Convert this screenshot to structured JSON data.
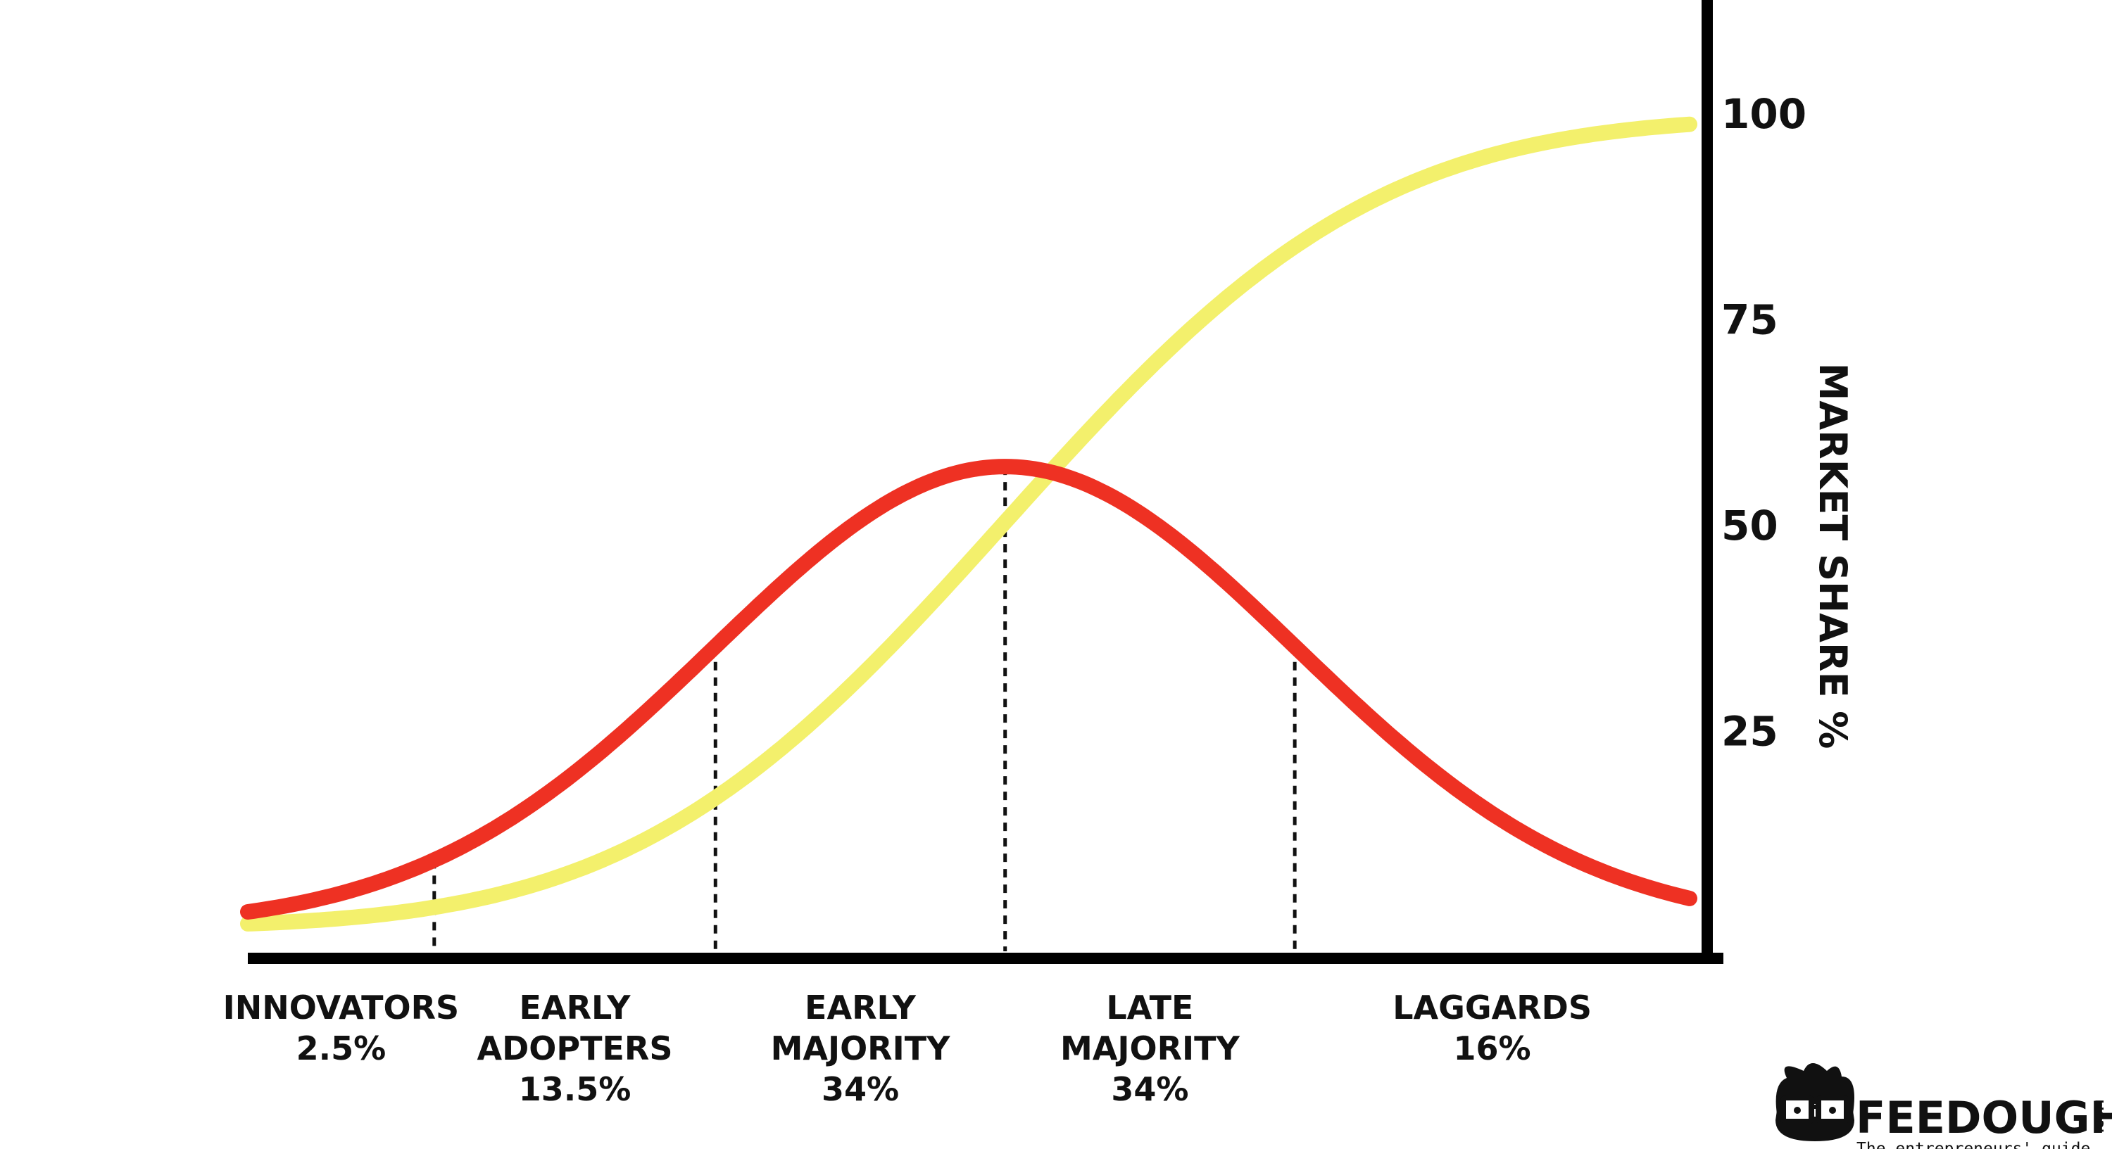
{
  "chart_data": {
    "type": "line",
    "title": "",
    "xlabel": "",
    "ylabel": "MARKET SHARE %",
    "ylim": [
      0,
      100
    ],
    "yticks": [
      "25",
      "50",
      "75",
      "100"
    ],
    "grid": false,
    "segments": [
      {
        "lines": [
          "INNOVATORS",
          "2.5%"
        ],
        "share": 2.5
      },
      {
        "lines": [
          "EARLY",
          "ADOPTERS",
          "13.5%"
        ],
        "share": 13.5
      },
      {
        "lines": [
          "EARLY",
          "MAJORITY",
          "34%"
        ],
        "share": 34
      },
      {
        "lines": [
          "LATE",
          "MAJORITY",
          "34%"
        ],
        "share": 34
      },
      {
        "lines": [
          "LAGGARDS",
          "16%"
        ],
        "share": 16
      }
    ],
    "series": [
      {
        "color": "#ee3123"
      },
      {
        "color": "#f3f06c"
      }
    ],
    "axis_color": "#000000"
  },
  "logo": {
    "name": "FEEDOUGH",
    "suffix": ".COM",
    "tagline": "The entrepreneurs' guide"
  }
}
